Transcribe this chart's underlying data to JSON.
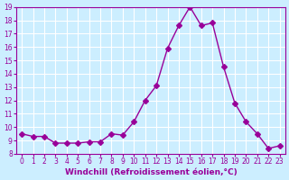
{
  "x": [
    0,
    1,
    2,
    3,
    4,
    5,
    6,
    7,
    8,
    9,
    10,
    11,
    12,
    13,
    14,
    15,
    16,
    17,
    18,
    19,
    20,
    21,
    22,
    23
  ],
  "y": [
    9.5,
    9.3,
    9.3,
    8.8,
    8.8,
    8.8,
    8.9,
    8.9,
    9.5,
    9.4,
    10.4,
    12.0,
    13.1,
    15.9,
    17.6,
    19.0,
    17.6,
    17.8,
    14.5,
    11.8,
    10.4,
    9.5,
    8.4,
    8.6
  ],
  "line_color": "#990099",
  "marker": "D",
  "marker_size": 3,
  "bg_color": "#cceeff",
  "grid_color": "#ffffff",
  "xlabel": "Windchill (Refroidissement éolien,°C)",
  "ylim": [
    8,
    19
  ],
  "xlim_min": -0.5,
  "xlim_max": 23.5,
  "yticks": [
    8,
    9,
    10,
    11,
    12,
    13,
    14,
    15,
    16,
    17,
    18,
    19
  ],
  "xticks": [
    0,
    1,
    2,
    3,
    4,
    5,
    6,
    7,
    8,
    9,
    10,
    11,
    12,
    13,
    14,
    15,
    16,
    17,
    18,
    19,
    20,
    21,
    22,
    23
  ],
  "tick_color": "#990099",
  "label_color": "#990099",
  "tick_fontsize": 5.5,
  "xlabel_fontsize": 6.5
}
